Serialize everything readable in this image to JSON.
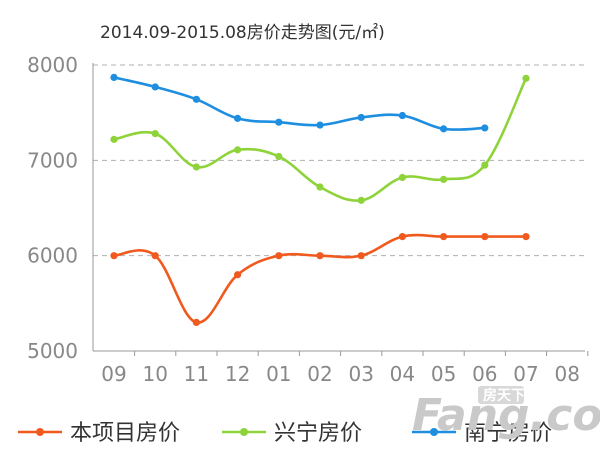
{
  "chart_data": {
    "type": "line",
    "title": "2014.09-2015.08房价走势图(元/㎡)",
    "xlabel": "",
    "ylabel": "",
    "categories": [
      "09",
      "10",
      "11",
      "12",
      "01",
      "02",
      "03",
      "04",
      "05",
      "06",
      "07",
      "08"
    ],
    "ylim": [
      5000,
      8000
    ],
    "yticks": [
      5000,
      6000,
      7000,
      8000
    ],
    "grid": true,
    "legend_position": "bottom",
    "series": [
      {
        "name": "本项目房价",
        "color": "#f05a1e",
        "values": [
          6000,
          6000,
          5300,
          5800,
          6000,
          6000,
          6000,
          6200,
          6200,
          6200,
          6200,
          null
        ]
      },
      {
        "name": "兴宁房价",
        "color": "#8fd33a",
        "values": [
          7220,
          7280,
          6930,
          7110,
          7040,
          6720,
          6580,
          6820,
          6800,
          6950,
          7860,
          null
        ]
      },
      {
        "name": "南宁房价",
        "color": "#1e8ee0",
        "values": [
          7870,
          7770,
          7640,
          7440,
          7400,
          7370,
          7450,
          7470,
          7330,
          7340,
          null,
          null
        ]
      }
    ]
  },
  "watermark": {
    "text": "Fang.com",
    "sub_text": "房天下"
  }
}
